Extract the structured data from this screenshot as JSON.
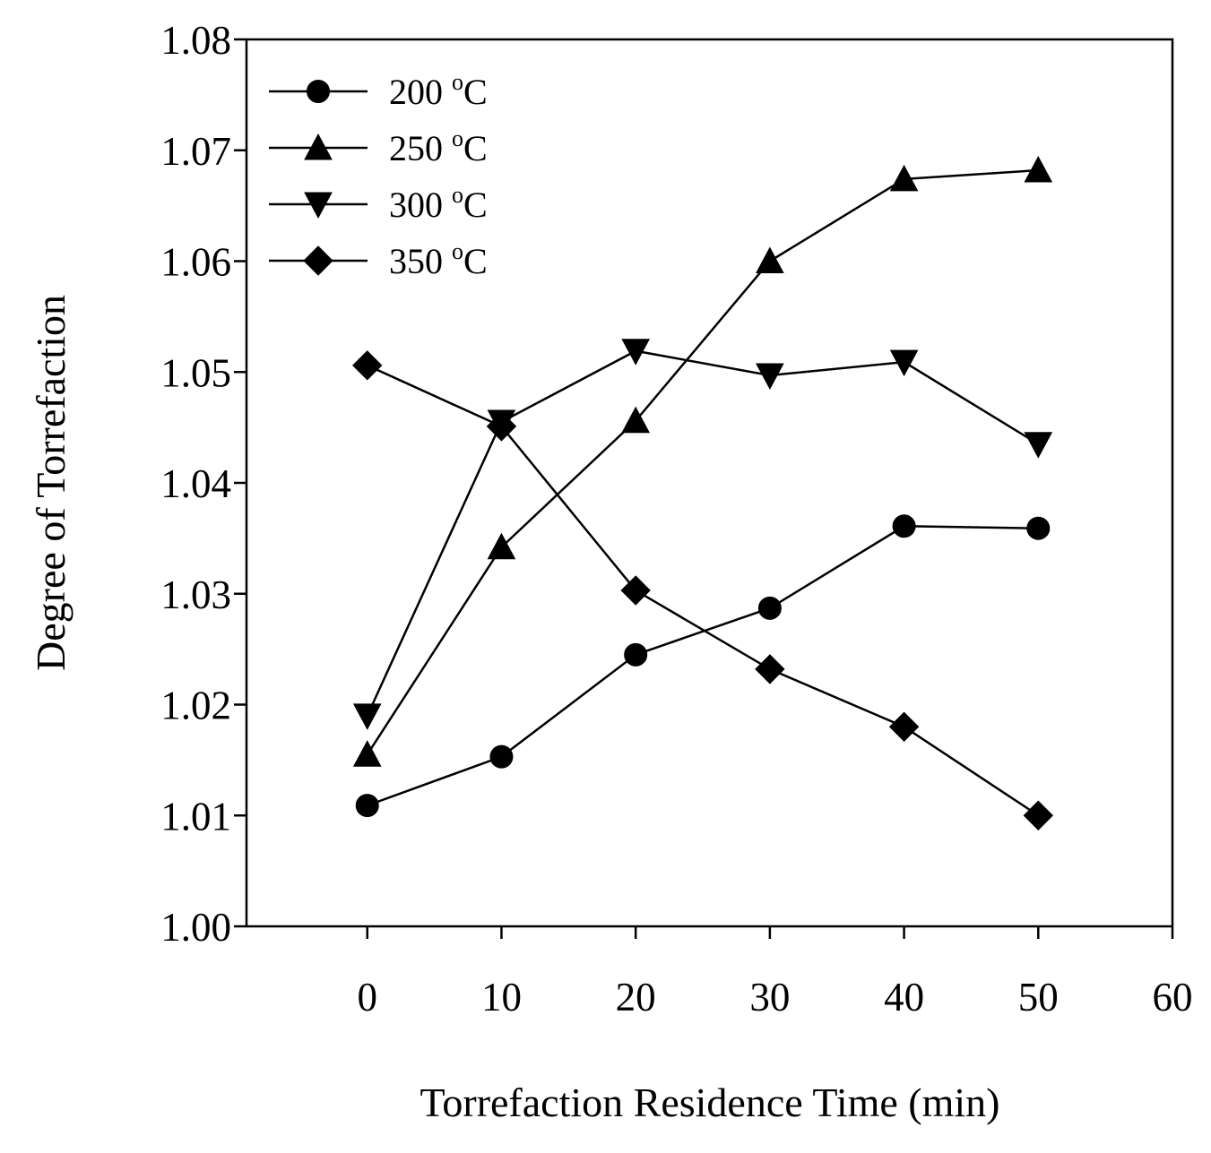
{
  "chart_data": {
    "type": "line",
    "title": "",
    "xlabel": "Torrefaction Residence Time (min)",
    "ylabel": "Degree of Torrefaction",
    "xlim": [
      -9,
      60
    ],
    "ylim": [
      1.0,
      1.08
    ],
    "x_ticks": [
      0,
      10,
      20,
      30,
      40,
      50,
      60
    ],
    "x_tick_labels": [
      "0",
      "10",
      "20",
      "30",
      "40",
      "50",
      "60"
    ],
    "y_ticks": [
      1.0,
      1.01,
      1.02,
      1.03,
      1.04,
      1.05,
      1.06,
      1.07,
      1.08
    ],
    "y_tick_labels": [
      "1.00",
      "1.01",
      "1.02",
      "1.03",
      "1.04",
      "1.05",
      "1.06",
      "1.07",
      "1.08"
    ],
    "grid": false,
    "legend_position": "top-left",
    "x": [
      0,
      10,
      20,
      30,
      40,
      50
    ],
    "series": [
      {
        "name": "200",
        "unit_sup": "o",
        "unit": "C",
        "marker": "circle",
        "values": [
          1.0109,
          1.0153,
          1.0245,
          1.0287,
          1.0361,
          1.0359
        ]
      },
      {
        "name": "250",
        "unit_sup": "o",
        "unit": "C",
        "marker": "triangle-up",
        "values": [
          1.0155,
          1.0342,
          1.0456,
          1.06,
          1.0674,
          1.0682
        ]
      },
      {
        "name": "300",
        "unit_sup": "o",
        "unit": "C",
        "marker": "triangle-down",
        "values": [
          1.019,
          1.0455,
          1.0519,
          1.0497,
          1.0509,
          1.0435
        ]
      },
      {
        "name": "350",
        "unit_sup": "o",
        "unit": "C",
        "marker": "diamond",
        "values": [
          1.0506,
          1.0451,
          1.0303,
          1.0232,
          1.018,
          1.01
        ]
      }
    ]
  }
}
